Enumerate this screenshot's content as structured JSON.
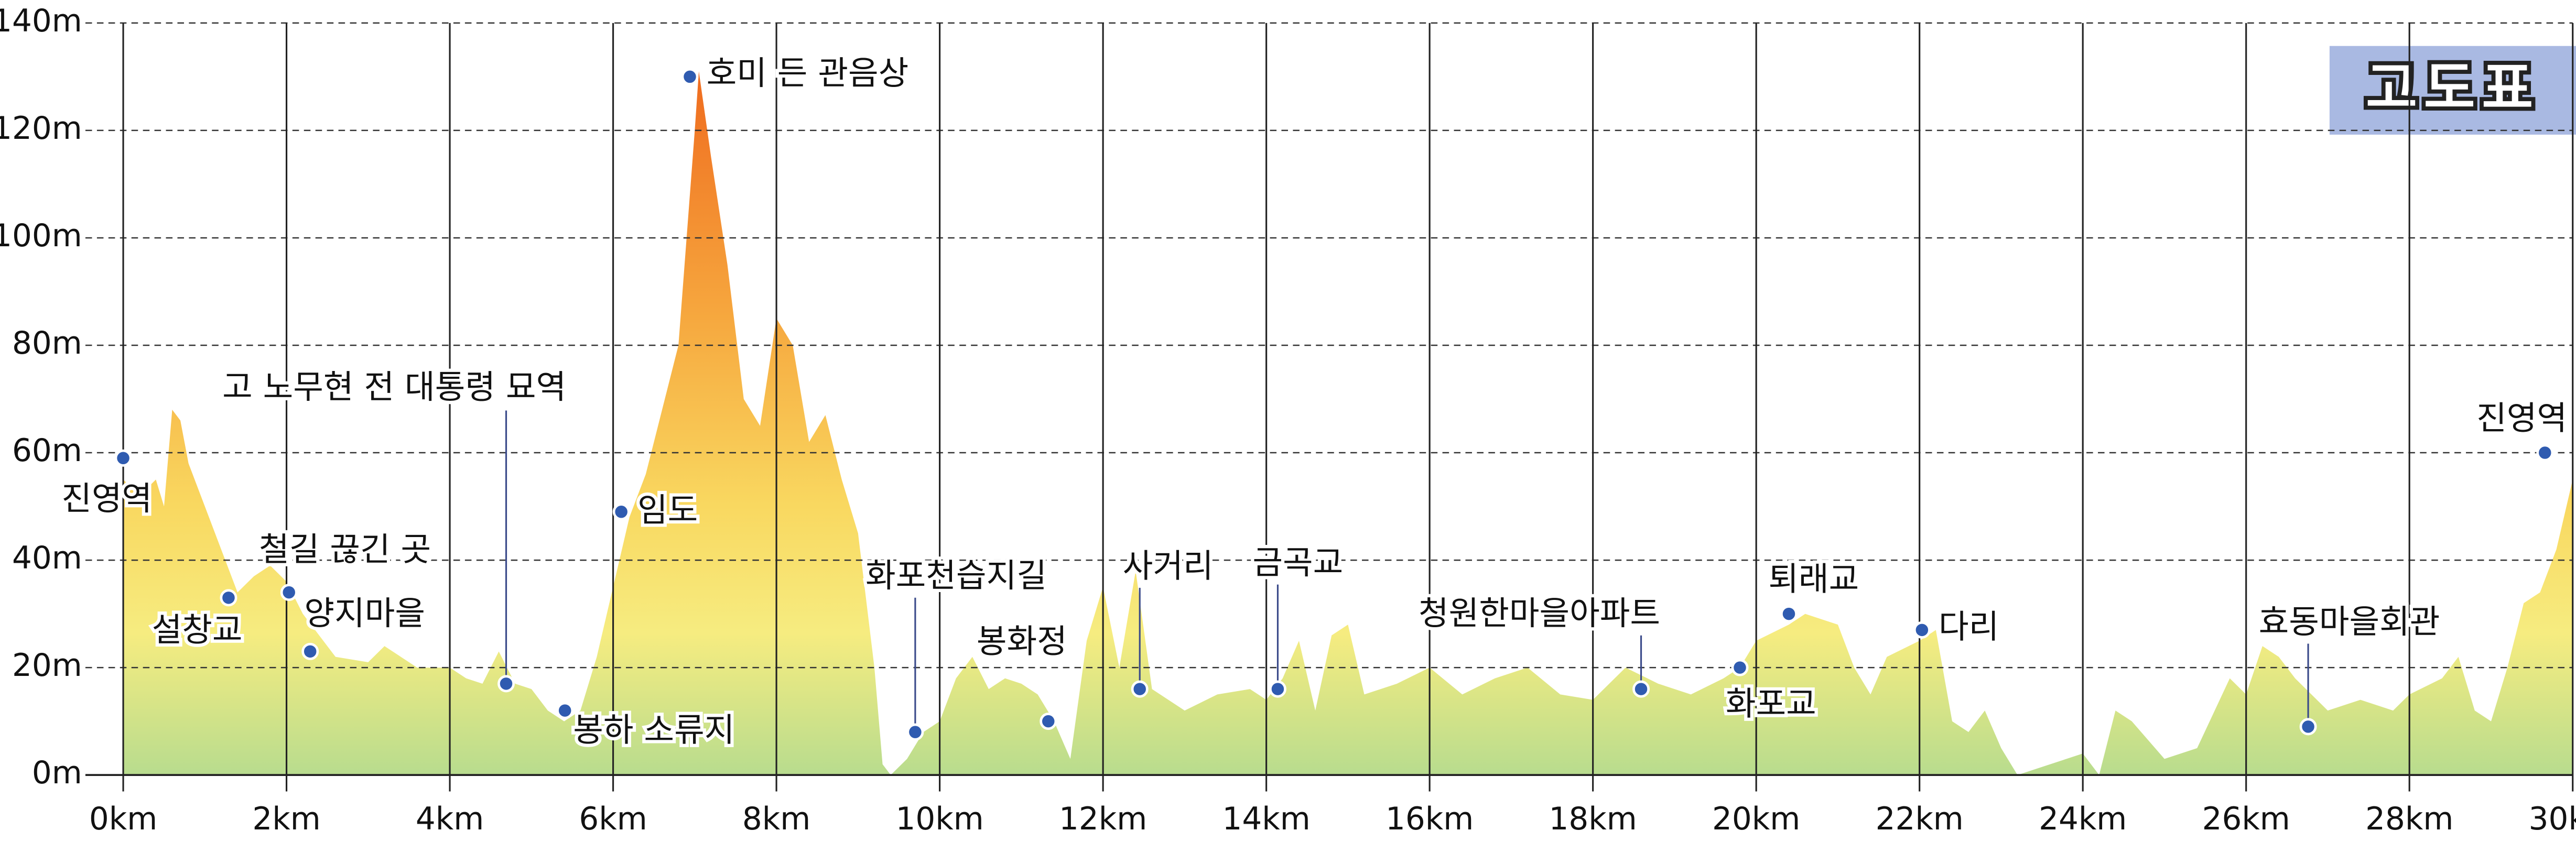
{
  "chart_data": {
    "type": "area",
    "title": "고도표",
    "x": [
      0,
      0.2,
      0.4,
      0.5,
      0.6,
      0.7,
      0.8,
      1.0,
      1.2,
      1.4,
      1.6,
      1.8,
      2.0,
      2.2,
      2.4,
      2.6,
      3.0,
      3.2,
      3.4,
      3.6,
      4.0,
      4.2,
      4.4,
      4.6,
      4.8,
      5.0,
      5.2,
      5.4,
      5.6,
      5.8,
      6.0,
      6.2,
      6.4,
      6.6,
      6.8,
      7.0,
      7.05,
      7.2,
      7.4,
      7.6,
      7.8,
      8.0,
      8.2,
      8.4,
      8.6,
      8.8,
      9.0,
      9.2,
      9.3,
      9.4,
      9.6,
      9.8,
      10.0,
      10.2,
      10.4,
      10.6,
      10.8,
      11.0,
      11.2,
      11.4,
      11.6,
      11.8,
      12.0,
      12.2,
      12.4,
      12.6,
      12.8,
      13.0,
      13.4,
      13.8,
      14.0,
      14.2,
      14.4,
      14.6,
      14.8,
      15.0,
      15.2,
      15.6,
      16.0,
      16.4,
      16.8,
      17.2,
      17.6,
      18.0,
      18.4,
      18.8,
      19.2,
      19.6,
      19.8,
      20.0,
      20.4,
      20.6,
      21.0,
      21.2,
      21.4,
      21.6,
      22.0,
      22.2,
      22.4,
      22.6,
      22.8,
      23.0,
      23.2,
      23.6,
      24.0,
      24.2,
      24.4,
      24.6,
      25.0,
      25.4,
      25.8,
      26.0,
      26.2,
      26.4,
      26.6,
      27.0,
      27.4,
      27.8,
      28.0,
      28.4,
      28.6,
      28.8,
      29.0,
      29.2,
      29.4,
      29.6,
      29.8,
      30.0
    ],
    "values": [
      55,
      52,
      55,
      50,
      68,
      66,
      58,
      50,
      42,
      34,
      37,
      39,
      36,
      30,
      26,
      22,
      21,
      24,
      22,
      20,
      20,
      18,
      17,
      23,
      17,
      16,
      12,
      10,
      12,
      22,
      35,
      48,
      56,
      68,
      80,
      120,
      131,
      115,
      95,
      70,
      65,
      85,
      80,
      62,
      67,
      55,
      45,
      20,
      2,
      0,
      3,
      8,
      10,
      18,
      22,
      16,
      18,
      17,
      15,
      10,
      3,
      25,
      35,
      20,
      38,
      16,
      14,
      12,
      15,
      16,
      14,
      18,
      25,
      12,
      26,
      28,
      15,
      17,
      20,
      15,
      18,
      20,
      15,
      14,
      20,
      17,
      15,
      18,
      20,
      25,
      28,
      30,
      28,
      20,
      15,
      22,
      25,
      27,
      10,
      8,
      12,
      5,
      0,
      2,
      4,
      0,
      12,
      10,
      3,
      5,
      18,
      15,
      24,
      22,
      18,
      12,
      14,
      12,
      15,
      18,
      22,
      12,
      10,
      20,
      32,
      34,
      42,
      55
    ],
    "xlim": [
      0,
      30
    ],
    "ylim": [
      0,
      140
    ],
    "xticks": [
      {
        "value": 0,
        "label": "0km"
      },
      {
        "value": 2,
        "label": "2km"
      },
      {
        "value": 4,
        "label": "4km"
      },
      {
        "value": 6,
        "label": "6km"
      },
      {
        "value": 8,
        "label": "8km"
      },
      {
        "value": 10,
        "label": "10km"
      },
      {
        "value": 12,
        "label": "12km"
      },
      {
        "value": 14,
        "label": "14km"
      },
      {
        "value": 16,
        "label": "16km"
      },
      {
        "value": 18,
        "label": "18km"
      },
      {
        "value": 20,
        "label": "20km"
      },
      {
        "value": 22,
        "label": "22km"
      },
      {
        "value": 24,
        "label": "24km"
      },
      {
        "value": 26,
        "label": "26km"
      },
      {
        "value": 28,
        "label": "28km"
      },
      {
        "value": 30,
        "label": "30km"
      }
    ],
    "yticks": [
      {
        "value": 0,
        "label": "0m"
      },
      {
        "value": 20,
        "label": "20m"
      },
      {
        "value": 40,
        "label": "40m"
      },
      {
        "value": 60,
        "label": "60m"
      },
      {
        "value": 80,
        "label": "80m"
      },
      {
        "value": 100,
        "label": "100m"
      },
      {
        "value": 120,
        "label": "120m"
      },
      {
        "value": 140,
        "label": "140m"
      }
    ],
    "grid": true,
    "landmarks": [
      {
        "name": "진영역",
        "km": 0,
        "elevation": 59
      },
      {
        "name": "설창교",
        "km": 1.29,
        "elevation": 33
      },
      {
        "name": "철길 끊긴 곳",
        "km": 2.03,
        "elevation": 34
      },
      {
        "name": "양지마을",
        "km": 2.29,
        "elevation": 23
      },
      {
        "name": "고 노무현 전 대통령 묘역",
        "km": 4.69,
        "elevation": 17
      },
      {
        "name": "봉하 소류지",
        "km": 5.41,
        "elevation": 12
      },
      {
        "name": "임도",
        "km": 6.1,
        "elevation": 49
      },
      {
        "name": "호미 든 관음상",
        "km": 6.94,
        "elevation": 130
      },
      {
        "name": "화포천습지길",
        "km": 9.7,
        "elevation": 8
      },
      {
        "name": "봉화정",
        "km": 11.33,
        "elevation": 10
      },
      {
        "name": "사거리",
        "km": 12.45,
        "elevation": 16
      },
      {
        "name": "금곡교",
        "km": 14.14,
        "elevation": 16
      },
      {
        "name": "청원한마을아파트",
        "km": 18.59,
        "elevation": 16
      },
      {
        "name": "화포교",
        "km": 19.8,
        "elevation": 20
      },
      {
        "name": "퇴래교",
        "km": 20.4,
        "elevation": 30
      },
      {
        "name": "다리",
        "km": 22.03,
        "elevation": 27
      },
      {
        "name": "효동마을회관",
        "km": 26.76,
        "elevation": 9
      },
      {
        "name": "진영역",
        "km": 29.66,
        "elevation": 60
      }
    ]
  }
}
